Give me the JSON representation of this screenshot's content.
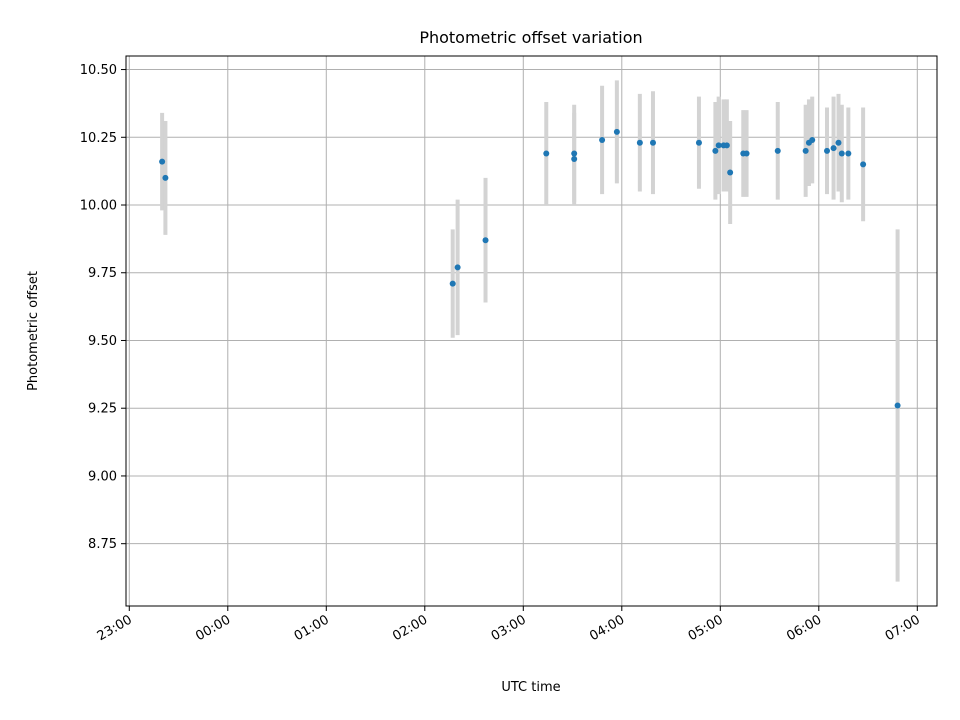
{
  "chart_data": {
    "type": "scatter",
    "title": "Photometric offset variation",
    "xlabel": "UTC time",
    "ylabel": "Photometric offset",
    "grid": true,
    "xlim": [
      "22:58",
      "07:12"
    ],
    "ylim": [
      8.52,
      10.55
    ],
    "xticks": [
      "23:00",
      "00:00",
      "01:00",
      "02:00",
      "03:00",
      "04:00",
      "05:00",
      "06:00",
      "07:00"
    ],
    "yticks": [
      8.75,
      9.0,
      9.25,
      9.5,
      9.75,
      10.0,
      10.25,
      10.5
    ],
    "ytick_labels": [
      "8.75",
      "9.00",
      "9.25",
      "9.50",
      "9.75",
      "10.00",
      "10.25",
      "10.50"
    ],
    "points": [
      {
        "x": "23:20",
        "y": 10.16,
        "err": 0.18
      },
      {
        "x": "23:22",
        "y": 10.1,
        "err": 0.21
      },
      {
        "x": "02:17",
        "y": 9.71,
        "err": 0.2
      },
      {
        "x": "02:20",
        "y": 9.77,
        "err": 0.25
      },
      {
        "x": "02:37",
        "y": 9.87,
        "err": 0.23
      },
      {
        "x": "03:14",
        "y": 10.19,
        "err": 0.19
      },
      {
        "x": "03:31",
        "y": 10.17,
        "err": 0.17
      },
      {
        "x": "03:31",
        "y": 10.19,
        "err": 0.18
      },
      {
        "x": "03:48",
        "y": 10.24,
        "err": 0.2
      },
      {
        "x": "03:57",
        "y": 10.27,
        "err": 0.19
      },
      {
        "x": "04:11",
        "y": 10.23,
        "err": 0.18
      },
      {
        "x": "04:19",
        "y": 10.23,
        "err": 0.19
      },
      {
        "x": "04:47",
        "y": 10.23,
        "err": 0.17
      },
      {
        "x": "04:57",
        "y": 10.2,
        "err": 0.18
      },
      {
        "x": "04:59",
        "y": 10.22,
        "err": 0.18
      },
      {
        "x": "05:02",
        "y": 10.22,
        "err": 0.17
      },
      {
        "x": "05:04",
        "y": 10.22,
        "err": 0.17
      },
      {
        "x": "05:06",
        "y": 10.12,
        "err": 0.19
      },
      {
        "x": "05:14",
        "y": 10.19,
        "err": 0.16
      },
      {
        "x": "05:16",
        "y": 10.19,
        "err": 0.16
      },
      {
        "x": "05:35",
        "y": 10.2,
        "err": 0.18
      },
      {
        "x": "05:52",
        "y": 10.2,
        "err": 0.17
      },
      {
        "x": "05:54",
        "y": 10.23,
        "err": 0.16
      },
      {
        "x": "05:56",
        "y": 10.24,
        "err": 0.16
      },
      {
        "x": "06:05",
        "y": 10.2,
        "err": 0.16
      },
      {
        "x": "06:09",
        "y": 10.21,
        "err": 0.19
      },
      {
        "x": "06:12",
        "y": 10.23,
        "err": 0.18
      },
      {
        "x": "06:14",
        "y": 10.19,
        "err": 0.18
      },
      {
        "x": "06:18",
        "y": 10.19,
        "err": 0.17
      },
      {
        "x": "06:27",
        "y": 10.15,
        "err": 0.21
      },
      {
        "x": "06:48",
        "y": 9.26,
        "err": 0.65
      }
    ],
    "colors": {
      "marker": "#1f77b4",
      "errorbar": "#d3d3d3",
      "grid": "#b0b0b0",
      "axis": "#000000"
    }
  }
}
